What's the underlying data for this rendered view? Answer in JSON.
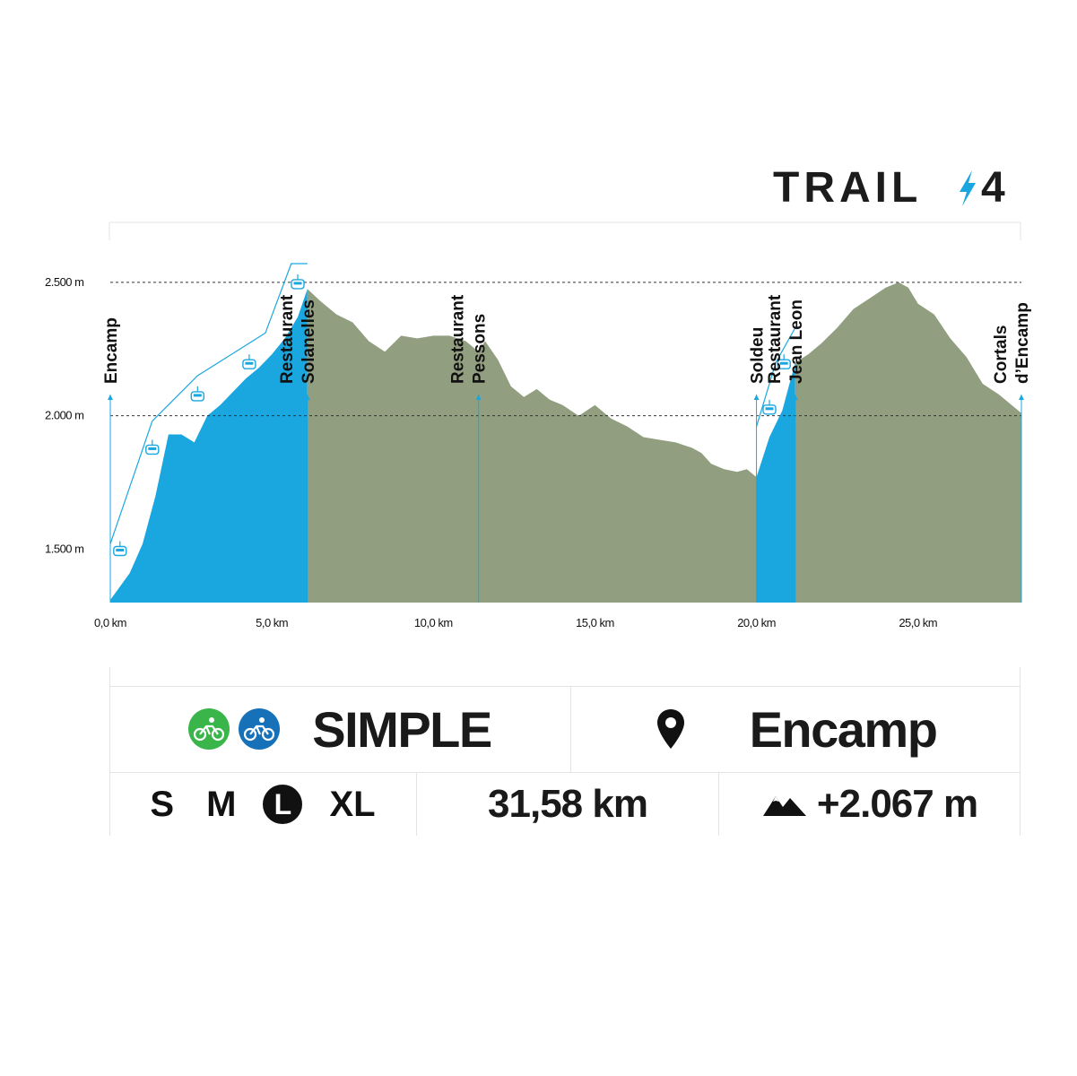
{
  "brand": {
    "name": "TRAIL",
    "number": "4",
    "bolt_color": "#1aa7df"
  },
  "chart_data": {
    "type": "area",
    "xlabel": "",
    "ylabel": "",
    "xlim": [
      0,
      28.2
    ],
    "ylim": [
      1300,
      2550
    ],
    "x_ticks": [
      {
        "value": 0,
        "label": "0,0 km"
      },
      {
        "value": 5,
        "label": "5,0 km"
      },
      {
        "value": 10,
        "label": "10,0 km"
      },
      {
        "value": 15,
        "label": "15,0 km"
      },
      {
        "value": 20,
        "label": "20,0 km"
      },
      {
        "value": 25,
        "label": "25,0 km"
      }
    ],
    "y_ticks": [
      {
        "value": 1500,
        "label": "1.500 m"
      },
      {
        "value": 2000,
        "label": "2.000 m"
      },
      {
        "value": 2500,
        "label": "2.500 m"
      }
    ],
    "dashed_reference_lines": [
      2000,
      2500
    ],
    "colors": {
      "lift": "#1aa7df",
      "trail": "#919f80",
      "line": "#1aa7df"
    },
    "series": [
      {
        "name": "",
        "kind": "lift",
        "x": [
          0,
          0.6,
          1.0,
          1.4,
          1.8,
          2.2,
          2.6,
          3.0,
          3.4,
          3.8,
          4.2,
          4.6,
          5.0,
          5.4,
          5.8,
          6.0,
          6.1
        ],
        "y": [
          1310,
          1410,
          1520,
          1700,
          1930,
          1930,
          1900,
          2000,
          2040,
          2090,
          2140,
          2180,
          2230,
          2290,
          2370,
          2440,
          2475
        ]
      },
      {
        "name": "",
        "kind": "trail",
        "x": [
          6.1,
          6.5,
          7.0,
          7.5,
          8.0,
          8.5,
          9.0,
          9.5,
          10.0,
          10.5,
          11.0,
          11.4,
          11.6,
          12.0,
          12.4,
          12.8,
          13.2,
          13.6,
          14.0,
          14.5,
          15.0,
          15.5,
          16.0,
          16.5,
          17.0,
          17.5,
          18.0,
          18.3,
          18.6,
          19.0,
          19.4,
          19.7,
          20.0
        ],
        "y": [
          2475,
          2430,
          2380,
          2350,
          2280,
          2240,
          2300,
          2290,
          2300,
          2300,
          2280,
          2240,
          2280,
          2210,
          2110,
          2070,
          2100,
          2060,
          2040,
          2000,
          2040,
          1990,
          1960,
          1920,
          1910,
          1900,
          1880,
          1860,
          1820,
          1800,
          1790,
          1800,
          1770
        ]
      },
      {
        "name": "",
        "kind": "lift",
        "x": [
          20.0,
          20.4,
          20.8,
          21.0,
          21.2
        ],
        "y": [
          1770,
          1920,
          2020,
          2110,
          2200
        ]
      },
      {
        "name": "",
        "kind": "trail",
        "x": [
          21.2,
          21.6,
          22.0,
          22.5,
          23.0,
          23.5,
          24.0,
          24.4,
          24.7,
          25.0,
          25.5,
          26.0,
          26.5,
          27.0,
          27.5,
          28.2
        ],
        "y": [
          2200,
          2230,
          2270,
          2330,
          2400,
          2440,
          2480,
          2500,
          2480,
          2420,
          2380,
          2290,
          2220,
          2120,
          2080,
          2010
        ]
      }
    ],
    "lift_cables": [
      {
        "x": [
          0,
          1.3,
          2.7,
          4.8,
          5.6,
          6.1
        ],
        "y": [
          1520,
          1980,
          2150,
          2310,
          2570,
          2570
        ]
      },
      {
        "x": [
          20.0,
          20.6,
          21.2
        ],
        "y": [
          1960,
          2200,
          2330
        ]
      }
    ],
    "lift_cabins": [
      {
        "x": 0.3,
        "y": 1500
      },
      {
        "x": 1.3,
        "y": 1880
      },
      {
        "x": 2.7,
        "y": 2080
      },
      {
        "x": 4.3,
        "y": 2200
      },
      {
        "x": 5.8,
        "y": 2500
      },
      {
        "x": 20.4,
        "y": 2030
      },
      {
        "x": 20.85,
        "y": 2200
      }
    ],
    "points_of_interest": [
      {
        "x": 0,
        "lines": [
          "Encamp"
        ]
      },
      {
        "x": 6.1,
        "lines": [
          "Restaurant",
          "Solanelles"
        ]
      },
      {
        "x": 11.4,
        "lines": [
          "Restaurant",
          "Pessons"
        ]
      },
      {
        "x": 20.0,
        "lines": [
          "Soldeu"
        ]
      },
      {
        "x": 21.2,
        "lines": [
          "Restaurant",
          "Jean Leon"
        ]
      },
      {
        "x": 28.2,
        "lines": [
          "Cortals",
          "d’Encamp"
        ]
      }
    ]
  },
  "info": {
    "difficulty": "SIMPLE",
    "difficulty_icons": [
      {
        "name": "bike-green-icon",
        "color": "#3ab54a"
      },
      {
        "name": "bike-blue-icon",
        "color": "#1671b9"
      }
    ],
    "start_location": "Encamp",
    "sizes": [
      {
        "label": "S",
        "selected": false
      },
      {
        "label": "M",
        "selected": false
      },
      {
        "label": "L",
        "selected": true
      },
      {
        "label": "XL",
        "selected": false
      }
    ],
    "distance": "31,58 km",
    "elevation_gain": "+2.067 m"
  }
}
